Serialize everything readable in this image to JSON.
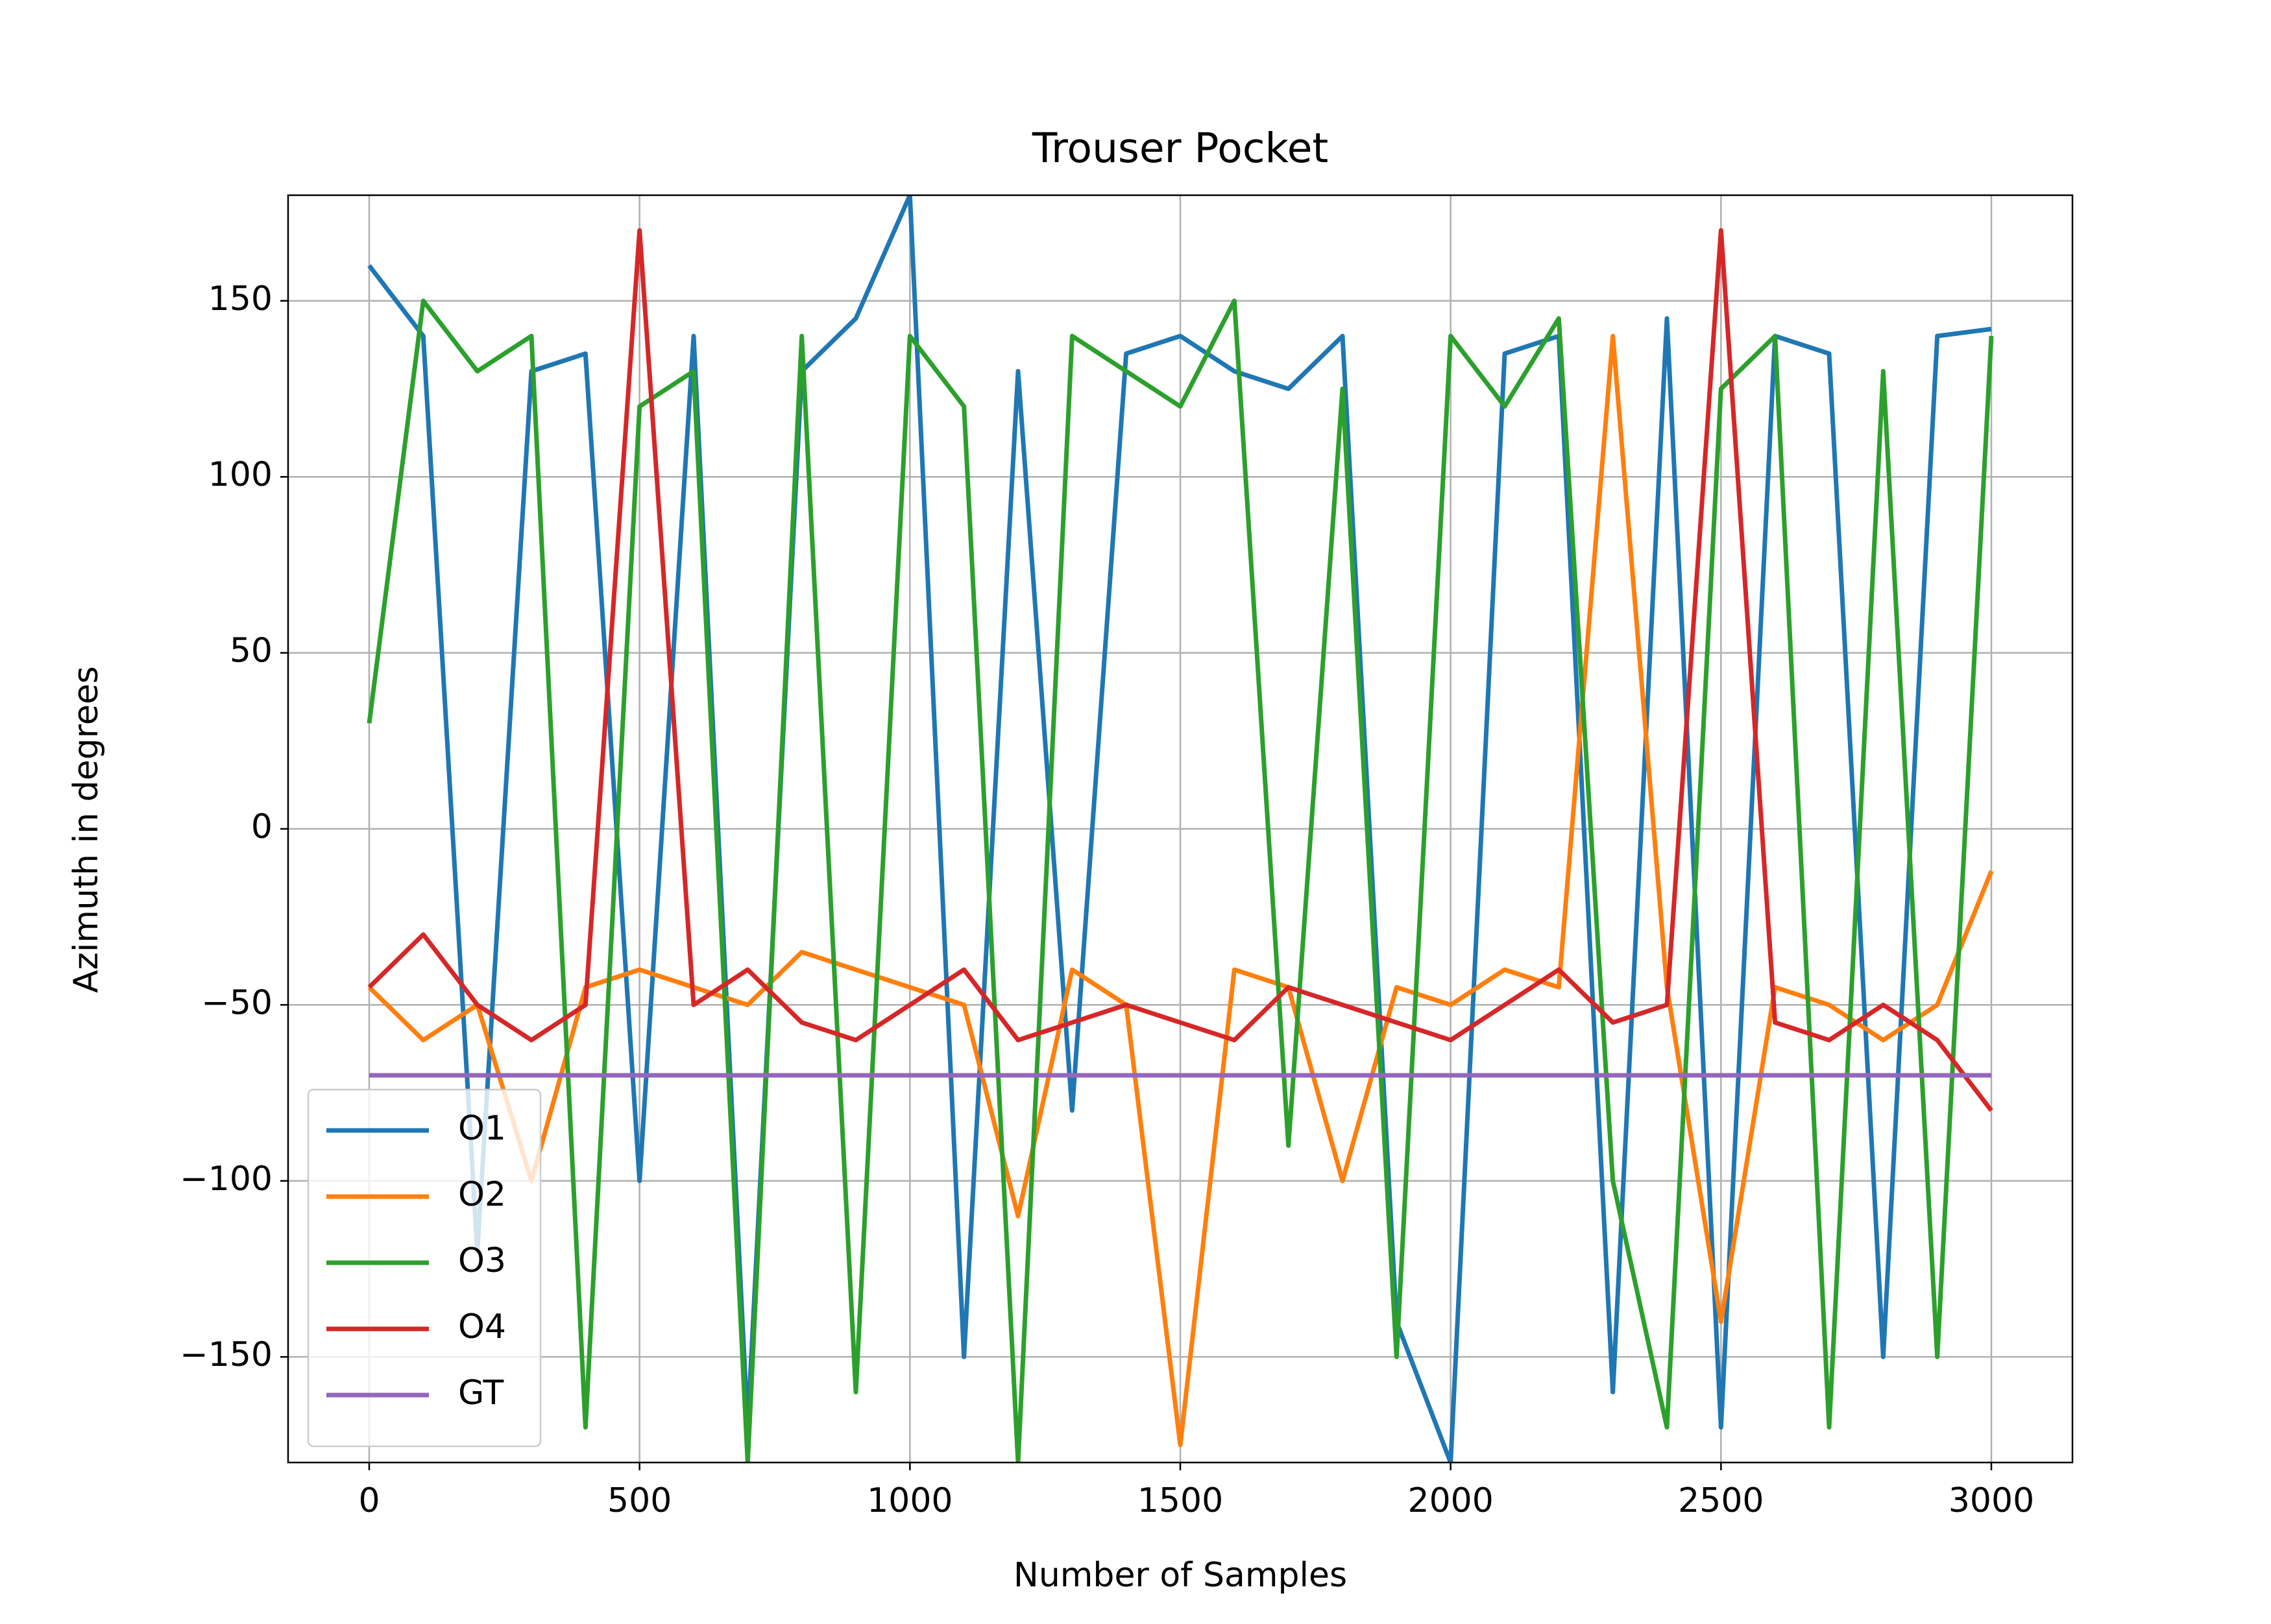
{
  "chart_data": {
    "type": "line",
    "title": "Trouser Pocket",
    "xlabel": "Number of Samples",
    "ylabel": "Azimuth in degrees",
    "x": [
      0,
      100,
      200,
      300,
      400,
      500,
      600,
      700,
      800,
      900,
      1000,
      1100,
      1200,
      1300,
      1400,
      1500,
      1600,
      1700,
      1800,
      1900,
      2000,
      2100,
      2200,
      2300,
      2400,
      2500,
      2600,
      2700,
      2800,
      2900,
      3000
    ],
    "series": [
      {
        "name": "O1",
        "color": "#1f77b4",
        "values": [
          160,
          140,
          -120,
          130,
          135,
          -100,
          140,
          -170,
          130,
          145,
          180,
          -150,
          130,
          -80,
          135,
          140,
          130,
          125,
          140,
          -140,
          -180,
          135,
          140,
          -160,
          145,
          -170,
          140,
          135,
          -150,
          140,
          142
        ]
      },
      {
        "name": "O2",
        "color": "#ff7f0e",
        "values": [
          -45,
          -60,
          -50,
          -100,
          -45,
          -40,
          -45,
          -50,
          -35,
          -40,
          -45,
          -50,
          -110,
          -40,
          -50,
          -175,
          -40,
          -45,
          -100,
          -45,
          -50,
          -40,
          -45,
          140,
          -45,
          -140,
          -45,
          -50,
          -60,
          -50,
          -12
        ]
      },
      {
        "name": "O3",
        "color": "#2ca02c",
        "values": [
          30,
          150,
          130,
          140,
          -170,
          120,
          130,
          -180,
          140,
          -160,
          140,
          120,
          -180,
          140,
          130,
          120,
          150,
          -90,
          125,
          -150,
          140,
          120,
          145,
          -100,
          -170,
          125,
          140,
          -170,
          130,
          -150,
          140
        ]
      },
      {
        "name": "O4",
        "color": "#d62728",
        "values": [
          -45,
          -30,
          -50,
          -60,
          -50,
          170,
          -50,
          -40,
          -55,
          -60,
          -50,
          -40,
          -60,
          -55,
          -50,
          -55,
          -60,
          -45,
          -50,
          -55,
          -60,
          -50,
          -40,
          -55,
          -50,
          170,
          -55,
          -60,
          -50,
          -60,
          -80
        ]
      },
      {
        "name": "GT",
        "color": "#9467bd",
        "values": [
          -70,
          -70,
          -70,
          -70,
          -70,
          -70,
          -70,
          -70,
          -70,
          -70,
          -70,
          -70,
          -70,
          -70,
          -70,
          -70,
          -70,
          -70,
          -70,
          -70,
          -70,
          -70,
          -70,
          -70,
          -70,
          -70,
          -70,
          -70,
          -70,
          -70,
          -70
        ]
      }
    ],
    "xlim": [
      -150,
      3150
    ],
    "ylim": [
      -180,
      180
    ],
    "xticks": [
      0,
      500,
      1000,
      1500,
      2000,
      2500,
      3000
    ],
    "yticks": [
      {
        "value": -150,
        "label": "−150"
      },
      {
        "value": -100,
        "label": "−100"
      },
      {
        "value": -50,
        "label": "−50"
      },
      0,
      50,
      100,
      150
    ],
    "grid": true,
    "legend": "lower left"
  }
}
